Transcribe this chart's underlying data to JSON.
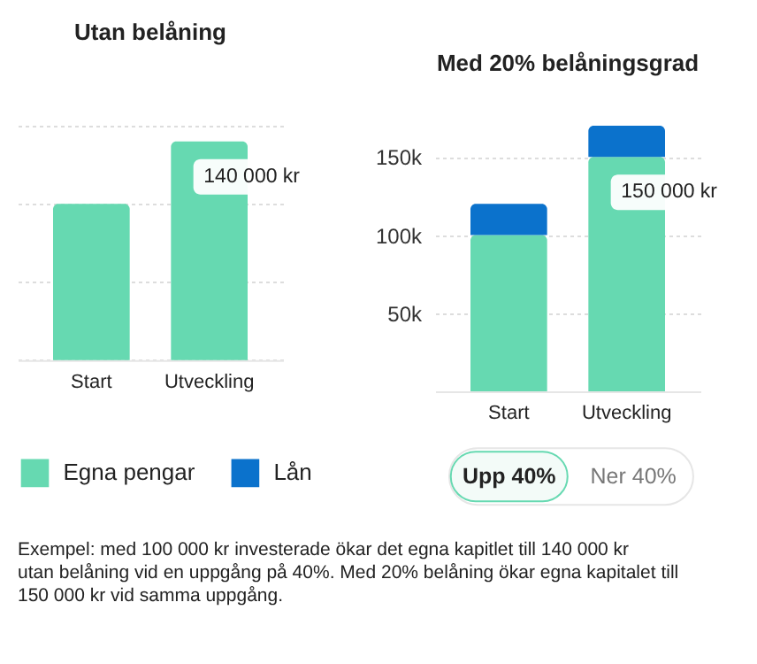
{
  "chart_data": [
    {
      "type": "bar",
      "title": "Utan belåning",
      "categories": [
        "Start",
        "Utveckling"
      ],
      "series": [
        {
          "color": "#66d9b1",
          "values": [
            100000,
            140000
          ],
          "value_labels": [
            null,
            "140 000 kr"
          ]
        }
      ],
      "ylim": [
        0,
        150000
      ],
      "yticks": [
        0,
        50000,
        100000,
        150000
      ],
      "grid": "y",
      "tick_labels": "x"
    },
    {
      "type": "bar",
      "title": "Med 20% belåningsgrad",
      "categories": [
        "Start",
        "Utveckling"
      ],
      "stacked": true,
      "series": [
        {
          "name": "Egna pengar",
          "color": "#66d9b1",
          "values": [
            100000,
            150000
          ],
          "value_labels": [
            null,
            "150 000 kr"
          ]
        },
        {
          "name": "Lån",
          "color": "#0b72cc",
          "values": [
            20000,
            20000
          ]
        }
      ],
      "ylim": [
        0,
        170000
      ],
      "yticks": [
        {
          "value": 0,
          "label": null
        },
        {
          "value": 50000,
          "label": "50k"
        },
        {
          "value": 100000,
          "label": "100k"
        },
        {
          "value": 150000,
          "label": "150k"
        }
      ],
      "grid": "y",
      "legend": "bottom",
      "annotations": [
        "Upp 40%",
        "Ner 40%",
        "Exempel: med 100 000 kr investerade ökar det egna kapitlet till 140 000 kr utan belåning vid en uppgång på 40%. Med 20% belåning ökar egna kapitalet till 150 000 kr vid samma uppgång."
      ]
    }
  ]
}
